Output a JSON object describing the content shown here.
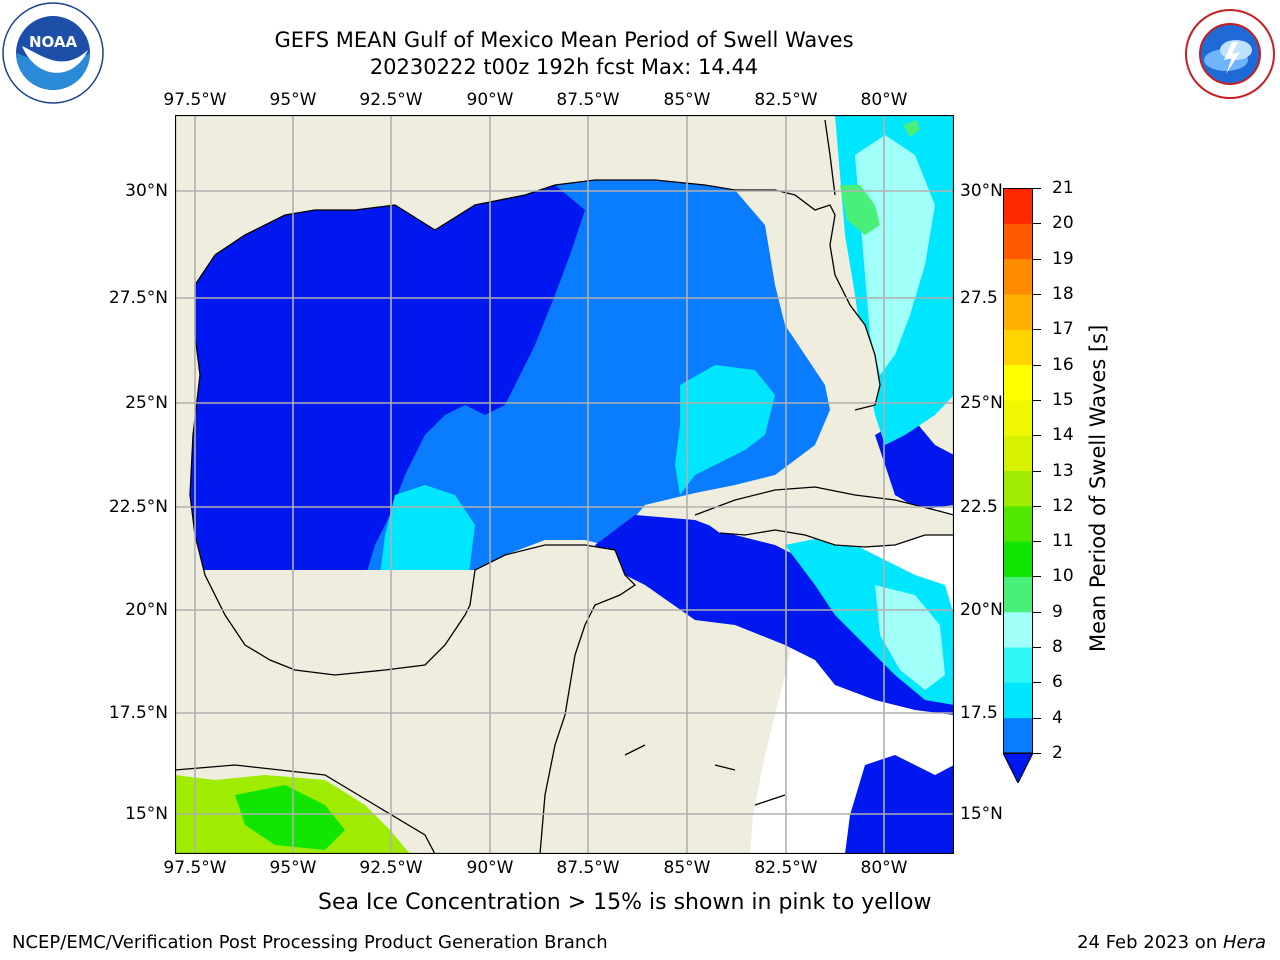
{
  "title": {
    "line1": "GEFS MEAN Gulf of Mexico Mean Period of Swell Waves",
    "line2": "20230222 t00z 192h fcst   Max: 14.44"
  },
  "logos": {
    "left": {
      "icon": "noaa-logo",
      "text": "NOAA"
    },
    "right": {
      "icon": "nws-logo",
      "text": "NATIONAL WEATHER SERVICE"
    }
  },
  "map": {
    "lon_ticks": [
      "97.5°W",
      "95°W",
      "92.5°W",
      "90°W",
      "87.5°W",
      "85°W",
      "82.5°W",
      "80°W"
    ],
    "lat_ticks_left": [
      "30°N",
      "27.5°N",
      "25°N",
      "22.5°N",
      "20°N",
      "17.5°N",
      "15°N"
    ],
    "lat_ticks_right": [
      "30°N",
      "27.5",
      "25°N",
      "22.5",
      "20°N",
      "17.5",
      "15°N"
    ],
    "colors": {
      "land": "#efedde",
      "missing": "#ffffff",
      "grid": "#b0b0b0"
    }
  },
  "colorbar": {
    "label": "Mean Period of Swell Waves [s]",
    "ticks": [
      "2",
      "4",
      "6",
      "8",
      "9",
      "10",
      "11",
      "12",
      "13",
      "14",
      "15",
      "16",
      "17",
      "18",
      "19",
      "20",
      "21"
    ],
    "levels": [
      2,
      4,
      6,
      8,
      9,
      10,
      11,
      12,
      13,
      14,
      15,
      16,
      17,
      18,
      19,
      20,
      21
    ],
    "colors": [
      "#0a7cff",
      "#00e6ff",
      "#30f5f5",
      "#a0fff8",
      "#48f07a",
      "#12e600",
      "#50e800",
      "#a0ec00",
      "#d6f200",
      "#f0f800",
      "#ffff00",
      "#ffd400",
      "#ffb000",
      "#ff8c00",
      "#ff5a00",
      "#ff2800"
    ],
    "underflow_color": "#0018f0"
  },
  "caption": "Sea Ice Concentration > 15% is shown in pink to yellow",
  "footer": {
    "left": "NCEP/EMC/Verification Post Processing Product Generation Branch",
    "right_date": "24 Feb 2023 on ",
    "right_machine": "Hera"
  }
}
